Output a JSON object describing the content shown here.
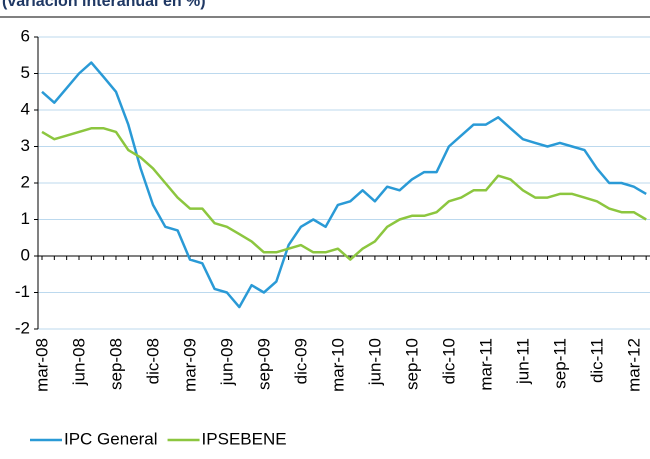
{
  "chart_data": {
    "type": "line",
    "title": "(variación interanual en %)",
    "categories": [
      "mar-08",
      null,
      null,
      "jun-08",
      null,
      null,
      "sep-08",
      null,
      null,
      "dic-08",
      null,
      null,
      "mar-09",
      null,
      null,
      "jun-09",
      null,
      null,
      "sep-09",
      null,
      null,
      "dic-09",
      null,
      null,
      "mar-10",
      null,
      null,
      "jun-10",
      null,
      null,
      "sep-10",
      null,
      null,
      "dic-10",
      null,
      null,
      "mar-11",
      null,
      null,
      "jun-11",
      null,
      null,
      "sep-11",
      null,
      null,
      "dic-11",
      null,
      null,
      "mar-12",
      null
    ],
    "series": [
      {
        "name": "IPC General",
        "color": "#2a9ad6",
        "values": [
          4.5,
          4.2,
          4.6,
          5.0,
          5.3,
          4.9,
          4.5,
          3.6,
          2.4,
          1.4,
          0.8,
          0.7,
          -0.1,
          -0.2,
          -0.9,
          -1.0,
          -1.4,
          -0.8,
          -1.0,
          -0.7,
          0.3,
          0.8,
          1.0,
          0.8,
          1.4,
          1.5,
          1.8,
          1.5,
          1.9,
          1.8,
          2.1,
          2.3,
          2.3,
          3.0,
          3.3,
          3.6,
          3.6,
          3.8,
          3.5,
          3.2,
          3.1,
          3.0,
          3.1,
          3.0,
          2.9,
          2.4,
          2.0,
          2.0,
          1.9,
          1.7
        ]
      },
      {
        "name": "IPSEBENE",
        "color": "#8cc63f",
        "values": [
          3.4,
          3.2,
          3.3,
          3.4,
          3.5,
          3.5,
          3.4,
          2.9,
          2.7,
          2.4,
          2.0,
          1.6,
          1.3,
          1.3,
          0.9,
          0.8,
          0.6,
          0.4,
          0.1,
          0.1,
          0.2,
          0.3,
          0.1,
          0.1,
          0.2,
          -0.1,
          0.2,
          0.4,
          0.8,
          1.0,
          1.1,
          1.1,
          1.2,
          1.5,
          1.6,
          1.8,
          1.8,
          2.2,
          2.1,
          1.8,
          1.6,
          1.6,
          1.7,
          1.7,
          1.6,
          1.5,
          1.3,
          1.2,
          1.2,
          1.0
        ]
      }
    ],
    "ylim": [
      -2,
      6
    ],
    "yticks": [
      -2,
      -1,
      0,
      1,
      2,
      3,
      4,
      5,
      6
    ],
    "grid": true
  }
}
